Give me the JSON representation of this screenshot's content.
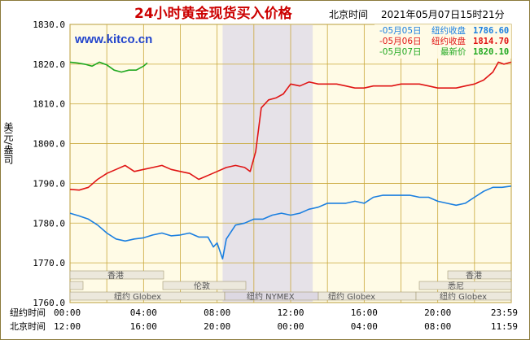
{
  "title": "24小时黄金现货买入价格",
  "timestamp_label": "北京时间",
  "timestamp": "2021年05月07日15时21分",
  "watermark": "www.kitco.cn",
  "ylabel": "美元/盎司",
  "colors": {
    "frame": "#8b7a3b",
    "plot_bg": "#fffbe6",
    "grid": "#c9a83b",
    "shade": "#e6e2e8",
    "title": "#cc0000",
    "watermark": "#2244cc",
    "blue": "#1b7fe0",
    "red": "#e01414",
    "green": "#1fa81f"
  },
  "legend": [
    {
      "label": "-05月05日",
      "kind": "纽约收盘",
      "value": "1786.60",
      "color": "#1b7fe0"
    },
    {
      "label": "-05月06日",
      "kind": "纽约收盘",
      "value": "1814.70",
      "color": "#e01414"
    },
    {
      "label": "-05月07日",
      "kind": "最新价",
      "value": "1820.10",
      "color": "#1fa81f"
    }
  ],
  "market_labels": [
    "香港",
    "香港",
    "伦敦",
    "悉尼",
    "纽约 Globex",
    "纽约 NYMEX",
    "纽约 Globex",
    "纽约 Globex"
  ],
  "x_row1_label": "纽约时间",
  "x_row2_label": "北京时间",
  "x_row1_ticks": [
    "00:00",
    "04:00",
    "08:00",
    "12:00",
    "16:00",
    "20:00",
    "23:59"
  ],
  "x_row2_ticks": [
    "12:00",
    "16:00",
    "20:00",
    "00:00",
    "04:00",
    "08:00",
    "11:59"
  ],
  "chart_data": {
    "type": "line",
    "x_unit": "hours (New York time, 0 = 00:00)",
    "xlim": [
      0,
      24
    ],
    "ylim": [
      1760,
      1830
    ],
    "yticks": [
      "1830.0",
      "1820.0",
      "1810.0",
      "1800.0",
      "1790.0",
      "1780.0",
      "1770.0",
      "1760.0"
    ],
    "shaded_range_hours": [
      8.3,
      13.2
    ],
    "series": [
      {
        "name": "05月05日",
        "color": "#1b7fe0",
        "points": [
          [
            0,
            1782.5
          ],
          [
            0.5,
            1781.8
          ],
          [
            1,
            1781
          ],
          [
            1.5,
            1779.5
          ],
          [
            2,
            1777.5
          ],
          [
            2.5,
            1776
          ],
          [
            3,
            1775.5
          ],
          [
            3.5,
            1776
          ],
          [
            4,
            1776.3
          ],
          [
            4.5,
            1777
          ],
          [
            5,
            1777.5
          ],
          [
            5.5,
            1776.8
          ],
          [
            6,
            1777
          ],
          [
            6.5,
            1777.5
          ],
          [
            7,
            1776.5
          ],
          [
            7.5,
            1776.5
          ],
          [
            7.8,
            1774
          ],
          [
            8,
            1775
          ],
          [
            8.3,
            1771
          ],
          [
            8.5,
            1776
          ],
          [
            9,
            1779.5
          ],
          [
            9.5,
            1780
          ],
          [
            10,
            1781
          ],
          [
            10.5,
            1781
          ],
          [
            11,
            1782
          ],
          [
            11.5,
            1782.5
          ],
          [
            12,
            1782
          ],
          [
            12.5,
            1782.5
          ],
          [
            13,
            1783.5
          ],
          [
            13.5,
            1784
          ],
          [
            14,
            1785
          ],
          [
            14.5,
            1785
          ],
          [
            15,
            1785
          ],
          [
            15.5,
            1785.5
          ],
          [
            16,
            1785
          ],
          [
            16.5,
            1786.5
          ],
          [
            17,
            1787
          ],
          [
            17.5,
            1787
          ],
          [
            18,
            1787
          ],
          [
            18.5,
            1787
          ],
          [
            19,
            1786.5
          ],
          [
            19.5,
            1786.5
          ],
          [
            20,
            1785.5
          ],
          [
            20.5,
            1785
          ],
          [
            21,
            1784.5
          ],
          [
            21.5,
            1785
          ],
          [
            22,
            1786.5
          ],
          [
            22.5,
            1788
          ],
          [
            23,
            1789
          ],
          [
            23.5,
            1789
          ],
          [
            23.99,
            1789.3
          ]
        ]
      },
      {
        "name": "05月06日",
        "color": "#e01414",
        "points": [
          [
            0,
            1788.5
          ],
          [
            0.5,
            1788.3
          ],
          [
            1,
            1789
          ],
          [
            1.5,
            1791
          ],
          [
            2,
            1792.5
          ],
          [
            2.5,
            1793.5
          ],
          [
            3,
            1794.5
          ],
          [
            3.5,
            1793
          ],
          [
            4,
            1793.5
          ],
          [
            4.5,
            1794
          ],
          [
            5,
            1794.5
          ],
          [
            5.5,
            1793.5
          ],
          [
            6,
            1793
          ],
          [
            6.5,
            1792.5
          ],
          [
            7,
            1791
          ],
          [
            7.5,
            1792
          ],
          [
            8,
            1793
          ],
          [
            8.5,
            1794
          ],
          [
            9,
            1794.5
          ],
          [
            9.5,
            1794
          ],
          [
            9.8,
            1793
          ],
          [
            10.1,
            1798
          ],
          [
            10.4,
            1809
          ],
          [
            10.8,
            1811
          ],
          [
            11.2,
            1811.5
          ],
          [
            11.6,
            1812.5
          ],
          [
            12,
            1815
          ],
          [
            12.5,
            1814.5
          ],
          [
            13,
            1815.5
          ],
          [
            13.5,
            1815
          ],
          [
            14,
            1815
          ],
          [
            14.5,
            1815
          ],
          [
            15,
            1814.5
          ],
          [
            15.5,
            1814
          ],
          [
            16,
            1814
          ],
          [
            16.5,
            1814.5
          ],
          [
            17,
            1814.5
          ],
          [
            17.5,
            1814.5
          ],
          [
            18,
            1815
          ],
          [
            18.5,
            1815
          ],
          [
            19,
            1815
          ],
          [
            19.5,
            1814.5
          ],
          [
            20,
            1814
          ],
          [
            20.5,
            1814
          ],
          [
            21,
            1814
          ],
          [
            21.5,
            1814.5
          ],
          [
            22,
            1815
          ],
          [
            22.5,
            1816
          ],
          [
            23,
            1818
          ],
          [
            23.3,
            1820.5
          ],
          [
            23.6,
            1820
          ],
          [
            23.99,
            1820.5
          ]
        ]
      },
      {
        "name": "05月07日",
        "color": "#1fa81f",
        "points": [
          [
            0,
            1820.5
          ],
          [
            0.4,
            1820.3
          ],
          [
            0.8,
            1820
          ],
          [
            1.2,
            1819.5
          ],
          [
            1.6,
            1820.5
          ],
          [
            2,
            1819.8
          ],
          [
            2.4,
            1818.5
          ],
          [
            2.8,
            1818
          ],
          [
            3.2,
            1818.5
          ],
          [
            3.6,
            1818.5
          ],
          [
            4,
            1819.5
          ],
          [
            4.2,
            1820.3
          ]
        ]
      }
    ]
  }
}
